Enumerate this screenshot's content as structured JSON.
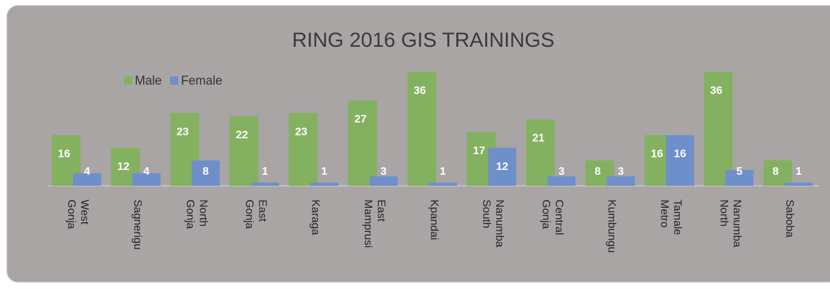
{
  "chart_data": {
    "type": "bar",
    "title": "RING 2016 GIS TRAININGS",
    "categories": [
      "West Gonja",
      "Sagnerigu",
      "North Gonja",
      "East Gonja",
      "Karaga",
      "East Mamprusi",
      "Kpandai",
      "Nanumba South",
      "Central Gonja",
      "Kumbungu",
      "Tamale Metro",
      "Nanumba North",
      "Saboba"
    ],
    "series": [
      {
        "name": "Male",
        "color": "#84b160",
        "values": [
          16,
          12,
          23,
          22,
          23,
          27,
          36,
          17,
          21,
          8,
          16,
          36,
          8
        ]
      },
      {
        "name": "Female",
        "color": "#6f8fca",
        "values": [
          4,
          4,
          8,
          1,
          1,
          3,
          1,
          12,
          3,
          3,
          16,
          5,
          1
        ]
      }
    ],
    "legend": "top-left"
  }
}
